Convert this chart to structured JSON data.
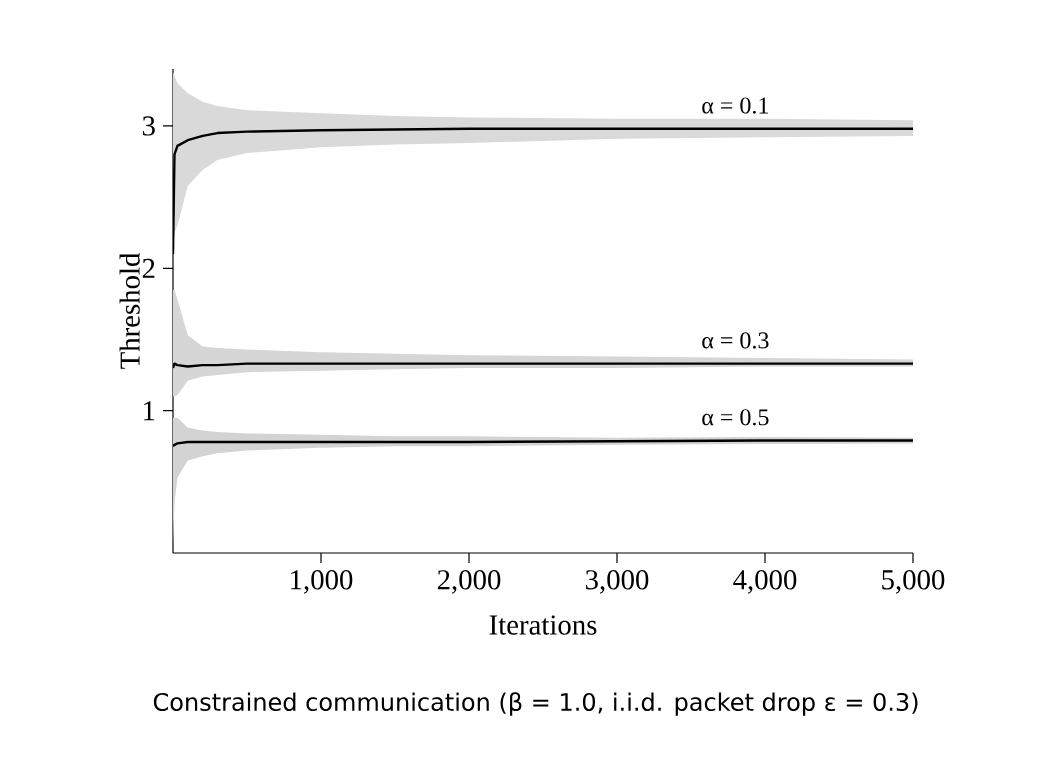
{
  "chart_data": {
    "type": "line",
    "xlabel": "Iterations",
    "ylabel": "Threshold",
    "x": [
      0,
      10,
      30,
      100,
      200,
      300,
      500,
      1000,
      1500,
      2000,
      3000,
      4000,
      5000
    ],
    "series": [
      {
        "name": "α = 0.1",
        "color": "#000000",
        "values": [
          2.1,
          2.8,
          2.86,
          2.9,
          2.93,
          2.95,
          2.96,
          2.97,
          2.975,
          2.98,
          2.98,
          2.98,
          2.98
        ],
        "lower": [
          2.2,
          2.25,
          2.3,
          2.58,
          2.69,
          2.76,
          2.81,
          2.85,
          2.87,
          2.88,
          2.91,
          2.92,
          2.93
        ],
        "upper": [
          3.38,
          3.35,
          3.3,
          3.23,
          3.17,
          3.14,
          3.11,
          3.09,
          3.07,
          3.06,
          3.05,
          3.05,
          3.04
        ]
      },
      {
        "name": "α = 0.3",
        "color": "#000000",
        "values": [
          1.3,
          1.33,
          1.32,
          1.31,
          1.32,
          1.32,
          1.33,
          1.33,
          1.33,
          1.33,
          1.33,
          1.33,
          1.33
        ],
        "lower": [
          1.1,
          1.1,
          1.11,
          1.21,
          1.24,
          1.25,
          1.27,
          1.28,
          1.29,
          1.3,
          1.3,
          1.31,
          1.31
        ],
        "upper": [
          1.85,
          1.85,
          1.78,
          1.53,
          1.45,
          1.44,
          1.43,
          1.41,
          1.4,
          1.39,
          1.38,
          1.37,
          1.36
        ]
      },
      {
        "name": "α = 0.5",
        "color": "#000000",
        "values": [
          0.75,
          0.76,
          0.77,
          0.78,
          0.78,
          0.78,
          0.78,
          0.78,
          0.78,
          0.78,
          0.785,
          0.79,
          0.79
        ],
        "lower": [
          0.05,
          0.35,
          0.53,
          0.65,
          0.68,
          0.7,
          0.72,
          0.74,
          0.75,
          0.75,
          0.76,
          0.765,
          0.77
        ],
        "upper": [
          0.95,
          0.95,
          0.95,
          0.88,
          0.86,
          0.85,
          0.84,
          0.83,
          0.82,
          0.82,
          0.81,
          0.815,
          0.81
        ]
      }
    ],
    "xlim": [
      0,
      5000
    ],
    "ylim": [
      0,
      3.4
    ],
    "xticks": [
      {
        "value": 1000,
        "label": "1,000"
      },
      {
        "value": 2000,
        "label": "2,000"
      },
      {
        "value": 3000,
        "label": "3,000"
      },
      {
        "value": 4000,
        "label": "4,000"
      },
      {
        "value": 5000,
        "label": "5,000"
      }
    ],
    "yticks": [
      1,
      2,
      3
    ],
    "line_style": "solid",
    "marker": "none",
    "annotations": [
      "Constrained communication (β = 1.0, i.i.d. packet drop ε = 0.3)"
    ]
  }
}
